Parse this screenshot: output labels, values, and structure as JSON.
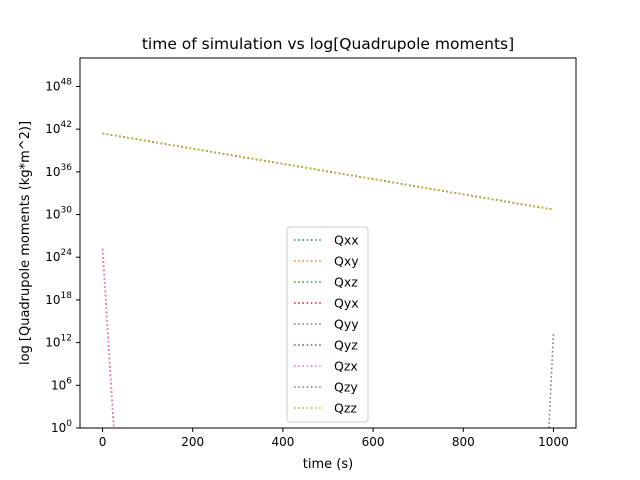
{
  "chart_data": {
    "type": "line",
    "title": "time of simulation vs log[Quadrupole moments]",
    "xlabel": "time (s)",
    "ylabel": "log [Quadrupole moments (kg*m^2)]",
    "xlim": [
      -50,
      1050
    ],
    "ylim_exponent": [
      0,
      52
    ],
    "y_scale": "log",
    "x_ticks": [
      0,
      200,
      400,
      600,
      800,
      1000
    ],
    "y_tick_exponents": [
      0,
      6,
      12,
      18,
      24,
      30,
      36,
      42,
      48
    ],
    "y_tick_base": "10",
    "grid": false,
    "legend_position": "lower-center",
    "line_style": "dotted",
    "series": [
      {
        "name": "Qxx",
        "color": "#1f77b4",
        "points": [
          [
            0,
            41.4
          ],
          [
            1000,
            30.7
          ]
        ]
      },
      {
        "name": "Qxy",
        "color": "#ff7f0e",
        "points": [
          [
            0,
            41.4
          ],
          [
            1000,
            30.7
          ]
        ]
      },
      {
        "name": "Qxz",
        "color": "#2ca02c",
        "points": [
          [
            0,
            41.4
          ],
          [
            1000,
            30.7
          ]
        ]
      },
      {
        "name": "Qyx",
        "color": "#d62728",
        "points": [
          [
            0,
            25.2
          ],
          [
            25,
            0
          ]
        ]
      },
      {
        "name": "Qyy",
        "color": "#9467bd",
        "points": [
          [
            0,
            41.4
          ],
          [
            1000,
            30.7
          ]
        ]
      },
      {
        "name": "Qyz",
        "color": "#8c564b",
        "points": [
          [
            0,
            41.4
          ],
          [
            1000,
            30.7
          ]
        ]
      },
      {
        "name": "Qzx",
        "color": "#e377c2",
        "points": [
          [
            0,
            25.2
          ],
          [
            25,
            0
          ]
        ]
      },
      {
        "name": "Qzy",
        "color": "#7f7f7f",
        "points": [
          [
            990,
            0
          ],
          [
            1000,
            13.4
          ]
        ]
      },
      {
        "name": "Qzz",
        "color": "#bcbd22",
        "points": [
          [
            0,
            41.4
          ],
          [
            1000,
            30.7
          ]
        ]
      }
    ]
  }
}
